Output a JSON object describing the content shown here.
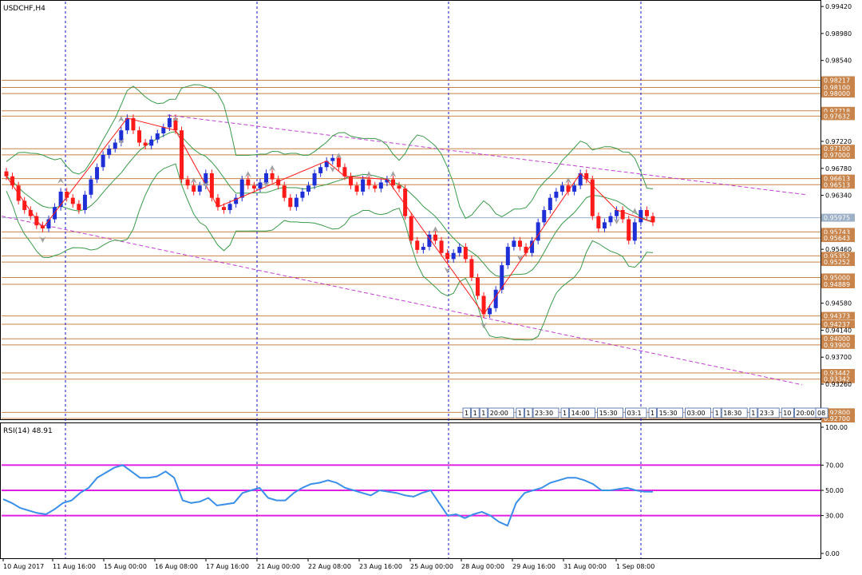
{
  "app": {
    "symbol_title": "USDCHF,H4",
    "rsi_title": "RSI(14) 48.91"
  },
  "colors": {
    "bull": "#1f2fd6",
    "bear": "#ff1a1a",
    "level_line": "#c8844a",
    "level_badge": "#c8844a",
    "current_badge": "#9db0c6",
    "channel": "#c040d0",
    "bands": "#3a9a4a",
    "zigzag": "#ff1a1a",
    "fractal": "#a0a0a0",
    "rsi_line": "#3a8fe8",
    "rsi_level": "#e020e0",
    "separator": "#1010d0",
    "axis_text": "#000000"
  },
  "chart_data": [
    {
      "type": "candlestick",
      "name": "USDCHF,H4",
      "ylim": [
        0.927,
        0.995
      ],
      "price_axis_ticks": [
        "0.99420",
        "0.98980",
        "0.98540",
        "0.97220",
        "0.96780",
        "0.96340",
        "0.95460",
        "0.94580",
        "0.94140",
        "0.93700",
        "0.93260"
      ],
      "levels": [
        {
          "label": "0.98217",
          "value": 0.98217
        },
        {
          "label": "0.98100",
          "value": 0.981
        },
        {
          "label": "0.98000",
          "value": 0.98
        },
        {
          "label": "0.97718",
          "value": 0.97718
        },
        {
          "label": "0.97632",
          "value": 0.97632
        },
        {
          "label": "0.97100",
          "value": 0.971
        },
        {
          "label": "0.97000",
          "value": 0.97
        },
        {
          "label": "0.96613",
          "value": 0.96613
        },
        {
          "label": "0.96513",
          "value": 0.96513
        },
        {
          "label": "0.95743",
          "value": 0.95743
        },
        {
          "label": "0.95643",
          "value": 0.95643
        },
        {
          "label": "0.95352",
          "value": 0.95352
        },
        {
          "label": "0.95252",
          "value": 0.95252
        },
        {
          "label": "0.95000",
          "value": 0.95
        },
        {
          "label": "0.94889",
          "value": 0.94889
        },
        {
          "label": "0.94373",
          "value": 0.94373
        },
        {
          "label": "0.94237",
          "value": 0.94237
        },
        {
          "label": "0.94000",
          "value": 0.94
        },
        {
          "label": "0.93900",
          "value": 0.939
        },
        {
          "label": "0.93442",
          "value": 0.93442
        },
        {
          "label": "0.93342",
          "value": 0.93342
        },
        {
          "label": "0.92800",
          "value": 0.928
        },
        {
          "label": "0.92700",
          "value": 0.927
        }
      ],
      "current_price": {
        "label": "0.95975",
        "value": 0.95975
      },
      "session_labels": [
        "1",
        "1",
        "1",
        "20:00",
        "1",
        "1",
        "23:30",
        "1",
        "14:00",
        "15:30",
        "03:1",
        "1",
        "15:30",
        "03:00",
        "1",
        "18:30",
        "1",
        "23:3",
        "10",
        "20:00",
        "08"
      ],
      "closes": [
        0.9665,
        0.965,
        0.9625,
        0.961,
        0.96,
        0.9585,
        0.958,
        0.9595,
        0.9615,
        0.964,
        0.963,
        0.962,
        0.961,
        0.9635,
        0.966,
        0.968,
        0.97,
        0.971,
        0.972,
        0.974,
        0.976,
        0.974,
        0.972,
        0.9715,
        0.9725,
        0.9735,
        0.9745,
        0.976,
        0.974,
        0.966,
        0.965,
        0.964,
        0.965,
        0.967,
        0.963,
        0.9615,
        0.961,
        0.962,
        0.963,
        0.966,
        0.965,
        0.9645,
        0.9655,
        0.967,
        0.966,
        0.965,
        0.963,
        0.9615,
        0.963,
        0.964,
        0.965,
        0.967,
        0.968,
        0.969,
        0.9695,
        0.968,
        0.9665,
        0.965,
        0.964,
        0.966,
        0.965,
        0.9645,
        0.9655,
        0.966,
        0.965,
        0.9645,
        0.96,
        0.956,
        0.9545,
        0.955,
        0.957,
        0.956,
        0.954,
        0.953,
        0.954,
        0.955,
        0.953,
        0.95,
        0.947,
        0.944,
        0.945,
        0.948,
        0.952,
        0.955,
        0.956,
        0.955,
        0.954,
        0.956,
        0.959,
        0.961,
        0.963,
        0.964,
        0.965,
        0.964,
        0.965,
        0.967,
        0.966,
        0.96,
        0.958,
        0.959,
        0.96,
        0.961,
        0.9595,
        0.956,
        0.959,
        0.961,
        0.96,
        0.959
      ]
    },
    {
      "type": "line",
      "name": "RSI(14)",
      "ylim": [
        0,
        100
      ],
      "ticks": [
        "100.00",
        "70.00",
        "50.00",
        "30.00",
        "0.00"
      ],
      "levels": [
        70,
        50,
        30
      ],
      "last_value": 48.91,
      "values": [
        43,
        40,
        36,
        34,
        32,
        31,
        35,
        40,
        42,
        48,
        52,
        60,
        64,
        68,
        70,
        65,
        60,
        60,
        61,
        65,
        60,
        42,
        40,
        41,
        44,
        38,
        39,
        40,
        48,
        50,
        52,
        44,
        42,
        42,
        48,
        52,
        55,
        56,
        58,
        56,
        52,
        50,
        48,
        46,
        50,
        49,
        48,
        46,
        45,
        48,
        50,
        40,
        30,
        31,
        28,
        31,
        33,
        30,
        25,
        22,
        40,
        48,
        50,
        52,
        56,
        58,
        60,
        60,
        58,
        55,
        50,
        50,
        51,
        52,
        50,
        49,
        48.91
      ],
      "x_labels": [
        "10 Aug 2017",
        "11 Aug 16:00",
        "15 Aug 00:00",
        "16 Aug 08:00",
        "17 Aug 16:00",
        "21 Aug 00:00",
        "22 Aug 08:00",
        "23 Aug 16:00",
        "25 Aug 00:00",
        "28 Aug 00:00",
        "29 Aug 16:00",
        "31 Aug 00:00",
        "1 Sep 08:00"
      ]
    }
  ]
}
